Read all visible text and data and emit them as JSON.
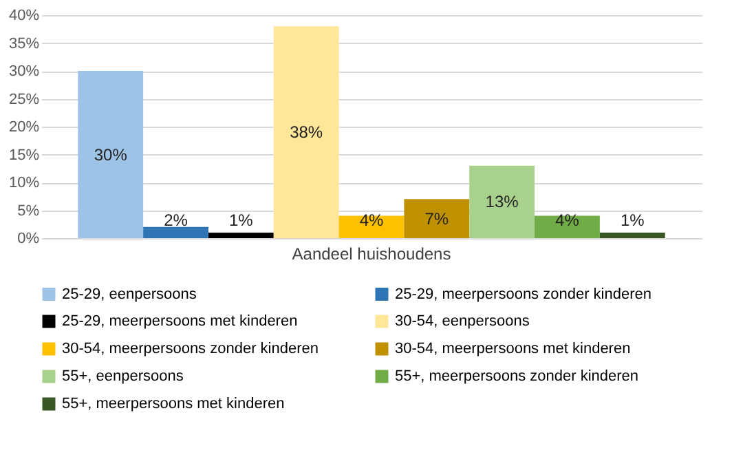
{
  "chart_data": {
    "type": "bar",
    "xlabel": null,
    "categories": [
      "Aandeel huishoudens"
    ],
    "series": [
      {
        "name": "25-29, eenpersoons",
        "color": "#9dc3e6",
        "values": [
          30
        ],
        "value_labels": [
          "30%"
        ]
      },
      {
        "name": "25-29, meerpersoons zonder kinderen",
        "color": "#2e75b6",
        "values": [
          2
        ],
        "value_labels": [
          "2%"
        ]
      },
      {
        "name": "25-29, meerpersoons met kinderen",
        "color": "#000000",
        "values": [
          1
        ],
        "value_labels": [
          "1%"
        ]
      },
      {
        "name": "30-54, eenpersoons",
        "color": "#ffe699",
        "values": [
          38
        ],
        "value_labels": [
          "38%"
        ]
      },
      {
        "name": "30-54, meerpersoons zonder kinderen",
        "color": "#ffc000",
        "values": [
          4
        ],
        "value_labels": [
          "4%"
        ]
      },
      {
        "name": "30-54, meerpersoons met kinderen",
        "color": "#bf9000",
        "values": [
          7
        ],
        "value_labels": [
          "7%"
        ]
      },
      {
        "name": "55+, eenpersoons",
        "color": "#a9d18e",
        "values": [
          13
        ],
        "value_labels": [
          "13%"
        ]
      },
      {
        "name": "55+, meerpersoons zonder kinderen",
        "color": "#70ad47",
        "values": [
          4
        ],
        "value_labels": [
          "4%"
        ]
      },
      {
        "name": "55+, meerpersoons met kinderen",
        "color": "#375623",
        "values": [
          1
        ],
        "value_labels": [
          "1%"
        ]
      }
    ],
    "ylim": [
      0,
      40
    ],
    "yticks": [
      {
        "value": 0,
        "label": "0%"
      },
      {
        "value": 5,
        "label": "5%"
      },
      {
        "value": 10,
        "label": "10%"
      },
      {
        "value": 15,
        "label": "15%"
      },
      {
        "value": 20,
        "label": "20%"
      },
      {
        "value": 25,
        "label": "25%"
      },
      {
        "value": 30,
        "label": "30%"
      },
      {
        "value": 35,
        "label": "35%"
      },
      {
        "value": 40,
        "label": "40%"
      }
    ],
    "grid": "y",
    "legend": "bottom"
  }
}
